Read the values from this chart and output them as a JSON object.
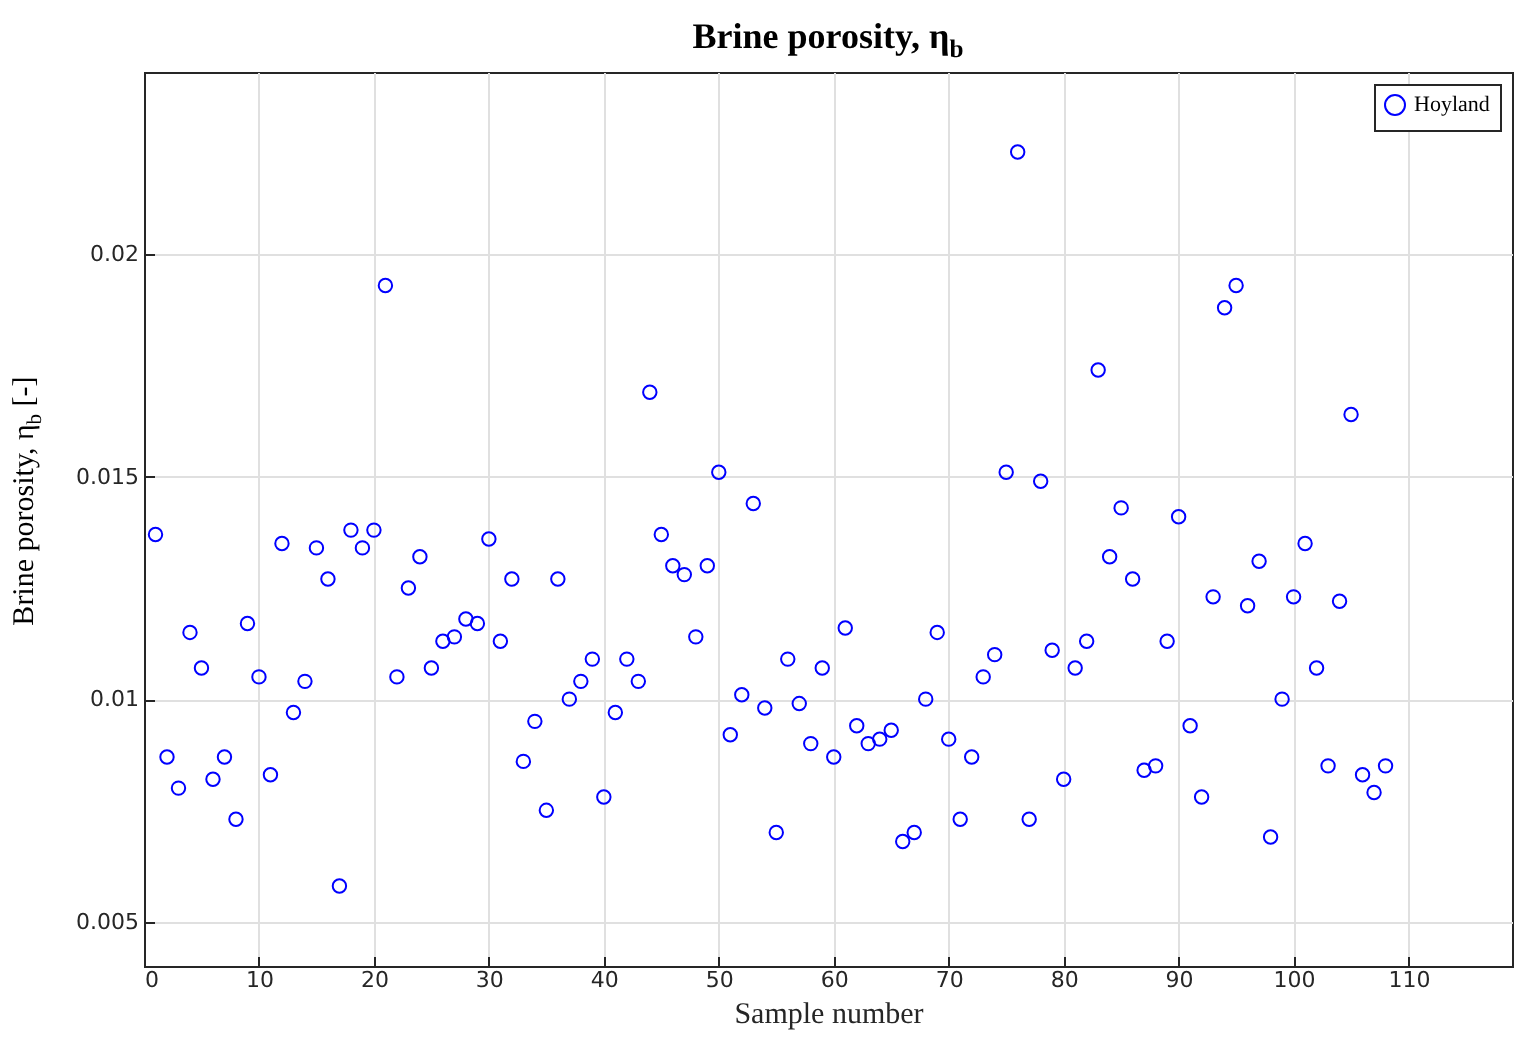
{
  "chart_data": {
    "type": "scatter",
    "title": "Brine porosity, η$_{b}$",
    "xlabel": "Sample number",
    "ylabel": "Brine porosity, η$_{b}$ [-]",
    "x": [
      1,
      2,
      3,
      4,
      5,
      6,
      7,
      8,
      9,
      10,
      11,
      12,
      13,
      14,
      15,
      16,
      17,
      18,
      19,
      20,
      21,
      22,
      23,
      24,
      25,
      26,
      27,
      28,
      29,
      30,
      31,
      32,
      33,
      34,
      35,
      36,
      37,
      38,
      39,
      40,
      41,
      42,
      43,
      44,
      45,
      46,
      47,
      48,
      49,
      50,
      51,
      52,
      53,
      54,
      55,
      56,
      57,
      58,
      59,
      60,
      61,
      62,
      63,
      64,
      65,
      66,
      67,
      68,
      69,
      70,
      71,
      72,
      73,
      74,
      75,
      76,
      77,
      78,
      79,
      80,
      81,
      82,
      83,
      84,
      85,
      86,
      87,
      88,
      89,
      90,
      91,
      92,
      93,
      94,
      95,
      96,
      97,
      98,
      99,
      100,
      101,
      102,
      103,
      104,
      105,
      106,
      107,
      108
    ],
    "series": [
      {
        "name": "Hoyland",
        "color": "#0000ff",
        "values": [
          0.0137,
          0.0087,
          0.008,
          0.0115,
          0.0107,
          0.0082,
          0.0087,
          0.0073,
          0.0117,
          0.0105,
          0.0083,
          0.0135,
          0.0097,
          0.0104,
          0.0134,
          0.0127,
          0.0058,
          0.0138,
          0.0134,
          0.0138,
          0.0193,
          0.0105,
          0.0125,
          0.0132,
          0.0107,
          0.0113,
          0.0114,
          0.0118,
          0.0117,
          0.0136,
          0.0113,
          0.0127,
          0.0086,
          0.0095,
          0.0075,
          0.0127,
          0.01,
          0.0104,
          0.0109,
          0.0078,
          0.0097,
          0.0109,
          0.0104,
          0.0169,
          0.0137,
          0.013,
          0.0128,
          0.0114,
          0.013,
          0.0151,
          0.0092,
          0.0101,
          0.0144,
          0.0098,
          0.007,
          0.0109,
          0.0099,
          0.009,
          0.0107,
          0.0087,
          0.0116,
          0.0094,
          0.009,
          0.0091,
          0.0093,
          0.0068,
          0.007,
          0.01,
          0.0115,
          0.0091,
          0.0073,
          0.0087,
          0.0105,
          0.011,
          0.0151,
          0.0223,
          0.0073,
          0.0149,
          0.0111,
          0.0082,
          0.0107,
          0.0113,
          0.0174,
          0.0132,
          0.0143,
          0.0127,
          0.0084,
          0.0085,
          0.0113,
          0.0141,
          0.0094,
          0.0078,
          0.0123,
          0.0188,
          0.0193,
          0.0121,
          0.0131,
          0.0069,
          0.01,
          0.0123,
          0.0135,
          0.0107,
          0.0085,
          0.0122,
          0.0164,
          0.0083,
          0.0079,
          0.0085
        ]
      }
    ],
    "xlim": [
      0,
      119
    ],
    "xticks": [
      0,
      10,
      20,
      30,
      40,
      50,
      60,
      70,
      80,
      90,
      100,
      110
    ],
    "ylim": [
      0.004,
      0.0241
    ],
    "yticks": [
      0.005,
      0.01,
      0.015,
      0.02
    ],
    "grid": true,
    "legend": "top right",
    "marker": "circle"
  }
}
